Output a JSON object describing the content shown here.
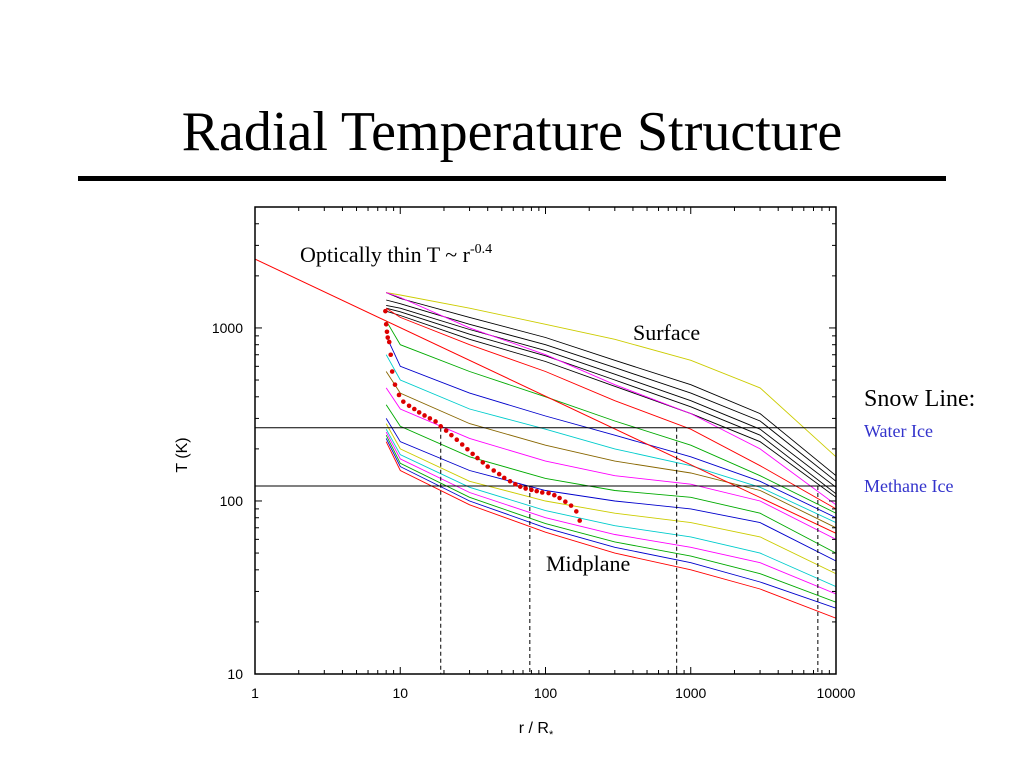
{
  "slide": {
    "title": "Radial Temperature Structure",
    "snow_line": {
      "heading": "Snow Line:",
      "water": "Water Ice",
      "methane": "Methane Ice",
      "water_color": "#3333cc"
    }
  },
  "chart_data": {
    "type": "line",
    "title": "",
    "xlabel": "r / R",
    "xlabel_subscript": "*",
    "ylabel": "T (K)",
    "x_scale": "log",
    "y_scale": "log",
    "xlim": [
      1,
      10000
    ],
    "ylim": [
      10,
      5000
    ],
    "x_ticks": [
      1,
      10,
      100,
      1000,
      10000
    ],
    "x_tick_labels": [
      "1",
      "10",
      "100",
      "1000",
      "10000"
    ],
    "y_ticks": [
      10,
      100,
      1000
    ],
    "y_tick_labels": [
      "10",
      "100",
      "1000"
    ],
    "grid": false,
    "annotations": {
      "optically_thin": {
        "text": "Optically thin T ~ r",
        "exponent": "-0.4",
        "x": 1.6,
        "y": 2300
      },
      "surface": {
        "text": "Surface",
        "x": 800,
        "y": 1000
      },
      "midplane": {
        "text": "Midplane",
        "x": 90,
        "y": 60
      }
    },
    "optically_thin_line": {
      "x": [
        1,
        10000
      ],
      "y": [
        2500,
        65
      ],
      "color": "#ff0000"
    },
    "snow_lines": [
      {
        "name": "Water Ice",
        "T": 265
      },
      {
        "name": "Methane Ice",
        "T": 122
      }
    ],
    "snow_line_radii": [
      19,
      78,
      800,
      7500
    ],
    "midplane_points": {
      "color": "#dd0000",
      "x": [
        7.9,
        8.0,
        8.1,
        8.2,
        8.4,
        8.6,
        8.8,
        9.2,
        9.8,
        10.5,
        11.5,
        12.5,
        13.5,
        14.7,
        16,
        17.5,
        19,
        20.7,
        22.5,
        24.5,
        26.7,
        29,
        31.5,
        34,
        37,
        40,
        44,
        48,
        52,
        57,
        62,
        67,
        73,
        80,
        87,
        95,
        105,
        115,
        125,
        137,
        150,
        163,
        172
      ],
      "y": [
        1250,
        1050,
        950,
        880,
        830,
        700,
        560,
        470,
        410,
        375,
        355,
        340,
        325,
        312,
        300,
        288,
        270,
        255,
        240,
        226,
        212,
        199,
        187,
        177,
        167,
        158,
        150,
        143,
        136,
        130,
        125,
        121,
        118,
        116,
        114,
        112,
        111,
        108,
        104,
        99,
        94,
        87,
        77
      ]
    },
    "series": [
      {
        "color": "#000000",
        "x": [
          8,
          10,
          30,
          100,
          300,
          1000,
          3000,
          10000
        ],
        "y": [
          1600,
          1480,
          1150,
          880,
          650,
          470,
          320,
          140
        ]
      },
      {
        "color": "#000000",
        "x": [
          8,
          10,
          30,
          100,
          300,
          1000,
          3000,
          10000
        ],
        "y": [
          1450,
          1380,
          1050,
          800,
          590,
          420,
          290,
          130
        ]
      },
      {
        "color": "#000000",
        "x": [
          8,
          10,
          30,
          100,
          300,
          1000,
          3000,
          10000
        ],
        "y": [
          1350,
          1300,
          980,
          740,
          540,
          380,
          260,
          120
        ]
      },
      {
        "color": "#000000",
        "x": [
          8,
          10,
          30,
          100,
          300,
          1000,
          3000,
          10000
        ],
        "y": [
          1300,
          1240,
          920,
          690,
          500,
          350,
          240,
          110
        ]
      },
      {
        "color": "#000000",
        "x": [
          8,
          10,
          30,
          100,
          300,
          1000,
          3000,
          10000
        ],
        "y": [
          1250,
          1180,
          860,
          640,
          460,
          320,
          220,
          105
        ]
      },
      {
        "color": "#cccc00",
        "x": [
          8,
          10,
          30,
          100,
          300,
          1000,
          3000,
          10000
        ],
        "y": [
          1600,
          1550,
          1300,
          1050,
          860,
          650,
          450,
          180
        ]
      },
      {
        "color": "#ff00ff",
        "x": [
          8,
          10,
          30,
          100,
          300,
          1000,
          3000,
          10000
        ],
        "y": [
          1600,
          1500,
          1000,
          700,
          470,
          320,
          200,
          95
        ]
      },
      {
        "color": "#ff0000",
        "x": [
          8,
          10,
          30,
          100,
          300,
          1000,
          3000,
          10000
        ],
        "y": [
          1300,
          1150,
          800,
          560,
          380,
          260,
          160,
          90
        ]
      },
      {
        "color": "#00aa00",
        "x": [
          8,
          10,
          30,
          100,
          300,
          1000,
          3000,
          10000
        ],
        "y": [
          1100,
          800,
          560,
          400,
          290,
          210,
          140,
          85
        ]
      },
      {
        "color": "#0000cc",
        "x": [
          8,
          10,
          30,
          100,
          300,
          1000,
          3000,
          10000
        ],
        "y": [
          900,
          600,
          420,
          310,
          240,
          180,
          130,
          80
        ]
      },
      {
        "color": "#00cccc",
        "x": [
          8,
          10,
          30,
          100,
          300,
          1000,
          3000,
          10000
        ],
        "y": [
          700,
          500,
          340,
          260,
          200,
          160,
          120,
          75
        ]
      },
      {
        "color": "#886600",
        "x": [
          8,
          10,
          30,
          100,
          300,
          1000,
          3000,
          10000
        ],
        "y": [
          560,
          420,
          280,
          210,
          170,
          145,
          115,
          70
        ]
      },
      {
        "color": "#ff00ff",
        "x": [
          8,
          10,
          30,
          100,
          300,
          1000,
          3000,
          10000
        ],
        "y": [
          450,
          340,
          230,
          170,
          140,
          125,
          100,
          60
        ]
      },
      {
        "color": "#00aa00",
        "x": [
          8,
          10,
          30,
          100,
          300,
          1000,
          3000,
          10000
        ],
        "y": [
          360,
          270,
          180,
          135,
          115,
          105,
          85,
          50
        ]
      },
      {
        "color": "#0000cc",
        "x": [
          8,
          10,
          30,
          100,
          300,
          1000,
          3000,
          10000
        ],
        "y": [
          300,
          220,
          150,
          115,
          100,
          90,
          75,
          45
        ]
      },
      {
        "color": "#cccc00",
        "x": [
          8,
          10,
          30,
          100,
          300,
          1000,
          3000,
          10000
        ],
        "y": [
          280,
          200,
          130,
          100,
          85,
          75,
          62,
          38
        ]
      },
      {
        "color": "#00cccc",
        "x": [
          8,
          10,
          30,
          100,
          300,
          1000,
          3000,
          10000
        ],
        "y": [
          260,
          185,
          120,
          88,
          72,
          62,
          50,
          32
        ]
      },
      {
        "color": "#ff00ff",
        "x": [
          8,
          10,
          30,
          100,
          300,
          1000,
          3000,
          10000
        ],
        "y": [
          250,
          175,
          112,
          80,
          64,
          54,
          44,
          29
        ]
      },
      {
        "color": "#00aa00",
        "x": [
          8,
          10,
          30,
          100,
          300,
          1000,
          3000,
          10000
        ],
        "y": [
          240,
          165,
          105,
          74,
          58,
          48,
          38,
          26
        ]
      },
      {
        "color": "#0000cc",
        "x": [
          8,
          10,
          30,
          100,
          300,
          1000,
          3000,
          10000
        ],
        "y": [
          230,
          158,
          100,
          70,
          54,
          44,
          34,
          24
        ]
      },
      {
        "color": "#ff0000",
        "x": [
          8,
          10,
          30,
          100,
          300,
          1000,
          3000,
          10000
        ],
        "y": [
          220,
          150,
          95,
          66,
          50,
          40,
          31,
          21
        ]
      }
    ]
  }
}
